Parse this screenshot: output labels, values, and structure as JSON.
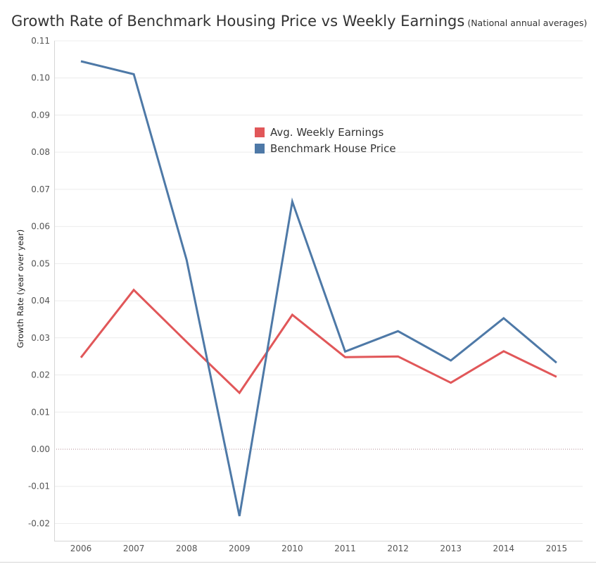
{
  "title": "Growth Rate of Benchmark Housing Price vs Weekly Earnings",
  "subtitle": "(National annual averages)",
  "chart_data": {
    "type": "line",
    "title": "Growth Rate of Benchmark Housing Price vs Weekly Earnings",
    "subtitle": "(National annual averages)",
    "xlabel": "",
    "ylabel": "Growth Rate (year over year)",
    "x": [
      "2006",
      "2007",
      "2008",
      "2009",
      "2010",
      "2011",
      "2012",
      "2013",
      "2014",
      "2015"
    ],
    "ylim": [
      -0.025,
      0.11
    ],
    "yticks": [
      "0.11",
      "0.10",
      "0.09",
      "0.08",
      "0.07",
      "0.06",
      "0.05",
      "0.04",
      "0.03",
      "0.02",
      "0.01",
      "0.00",
      "-0.01",
      "-0.02"
    ],
    "series": [
      {
        "name": "Avg. Weekly Earnings",
        "color": "#e15759",
        "values": [
          0.0247,
          0.0429,
          0.0289,
          0.0152,
          0.0362,
          0.0248,
          0.025,
          0.0179,
          0.0264,
          0.0195
        ]
      },
      {
        "name": "Benchmark House Price",
        "color": "#4e79a7",
        "values": [
          0.1045,
          0.101,
          0.051,
          -0.018,
          0.0667,
          0.0263,
          0.0318,
          0.0239,
          0.0353,
          0.0233
        ]
      }
    ],
    "zero_line": true,
    "grid": "horizontal",
    "legend_position": "upper-center"
  }
}
